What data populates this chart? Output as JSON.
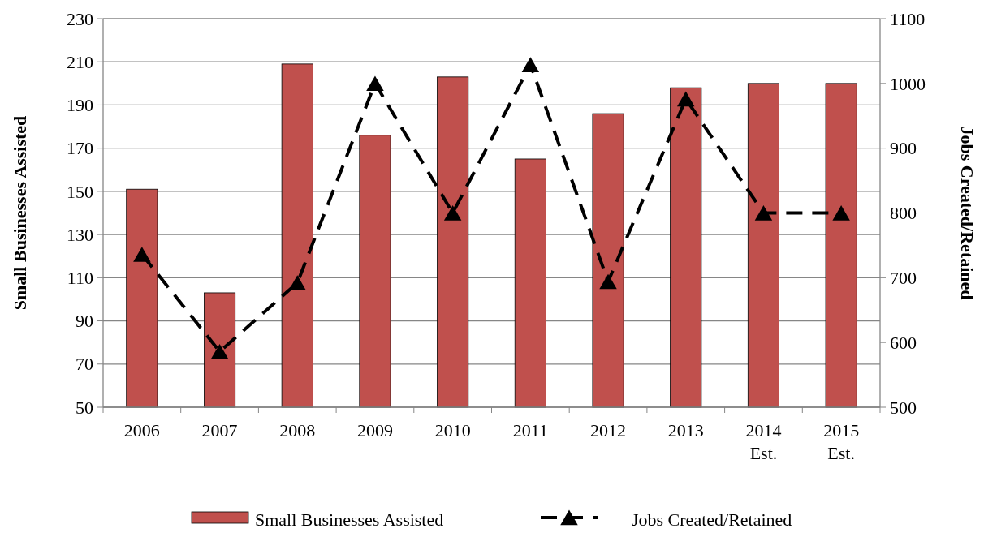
{
  "chart_data": {
    "type": "bar",
    "ylabel": "Small Businesses Assisted",
    "y2label": "Jobs Created/Retained",
    "categories": [
      "2006",
      "2007",
      "2008",
      "2009",
      "2010",
      "2011",
      "2012",
      "2013",
      "2014\nEst.",
      "2015\nEst."
    ],
    "series": [
      {
        "name": "Small Businesses Assisted",
        "color": "#c0504d",
        "values": [
          151,
          103,
          209,
          176,
          203,
          165,
          186,
          198,
          200,
          200
        ]
      },
      {
        "name": "Jobs Created/Retained",
        "type": "line",
        "axis": "y2",
        "color": "#000000",
        "marker": "triangle",
        "line_style": "dashed",
        "values": [
          736,
          586,
          692,
          1000,
          800,
          1029,
          694,
          976,
          800,
          800
        ]
      }
    ],
    "ylim": [
      50,
      230
    ],
    "yticks": [
      50,
      70,
      90,
      110,
      130,
      150,
      170,
      190,
      210,
      230
    ],
    "y2lim": [
      500,
      1100
    ],
    "y2ticks": [
      500,
      600,
      700,
      800,
      900,
      1000,
      1100
    ],
    "grid": "y",
    "legend": "bottom"
  }
}
